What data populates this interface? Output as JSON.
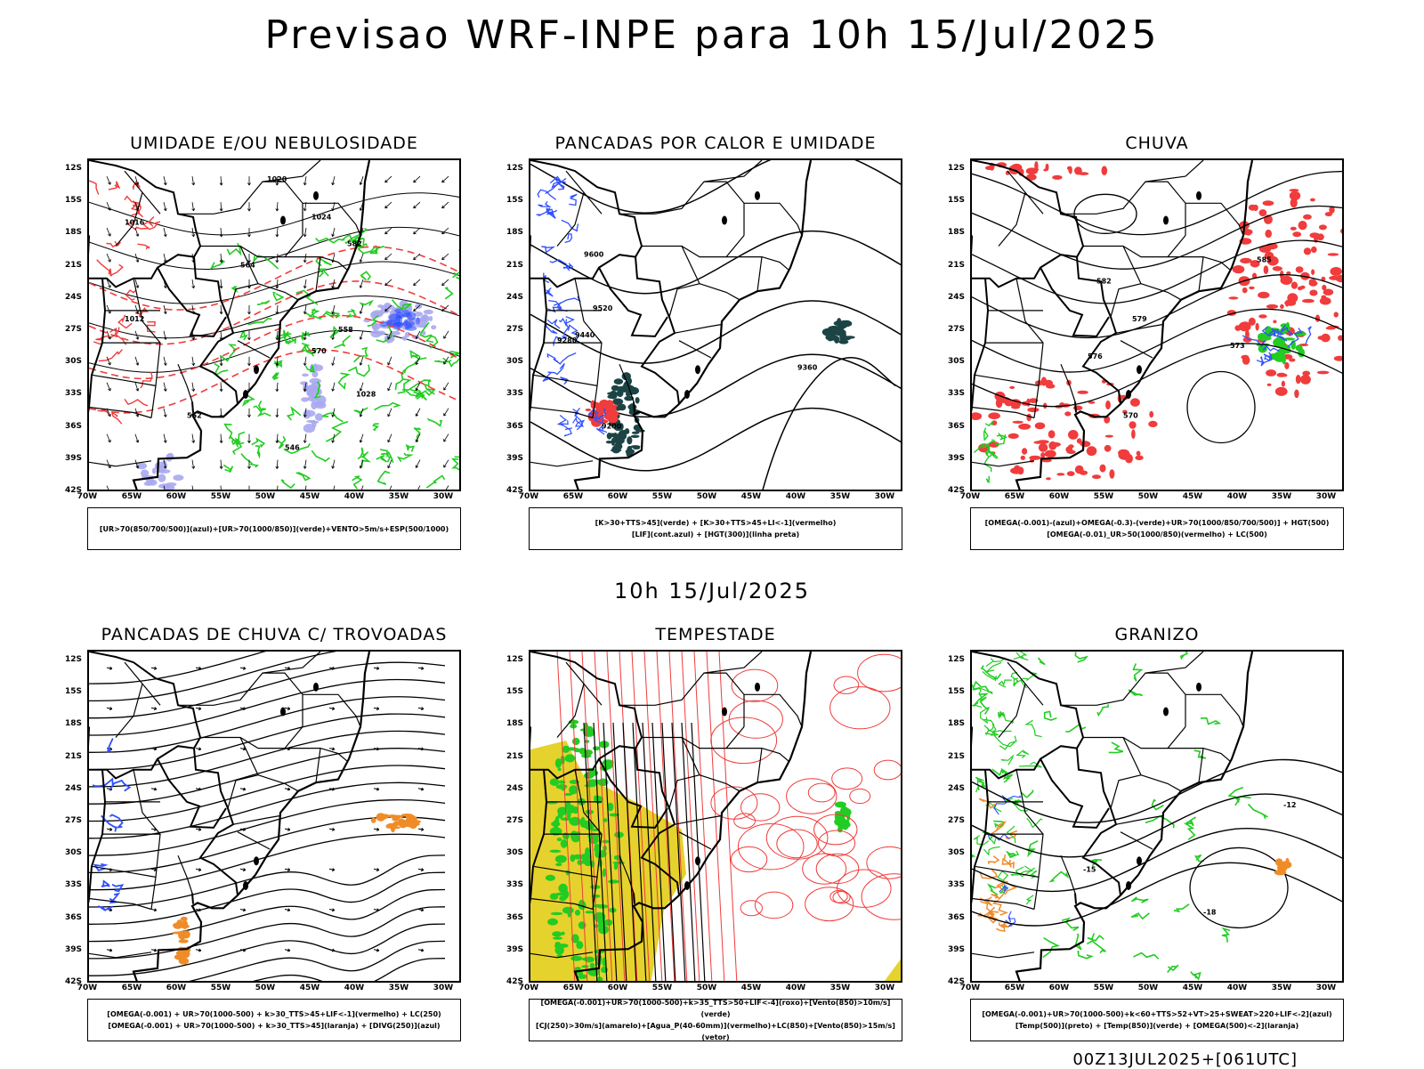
{
  "title": "Previsao WRF-INPE  para 10h 15/Jul/2025",
  "mid_title": "10h 15/Jul/2025",
  "footer": "00Z13JUL2025+[061UTC]",
  "lat_labels": [
    "12S",
    "15S",
    "18S",
    "21S",
    "24S",
    "27S",
    "30S",
    "33S",
    "36S",
    "39S",
    "42S"
  ],
  "lon_labels": [
    "70W",
    "65W",
    "60W",
    "55W",
    "50W",
    "45W",
    "40W",
    "35W",
    "30W"
  ],
  "colors": {
    "blue": "#3050ff",
    "green": "#22cc22",
    "red": "#f03c3c",
    "lavender": "#a8a8f0",
    "dark_teal": "#1c4444",
    "orange": "#f08c28",
    "yellow": "#e6d22d",
    "black": "#000000"
  },
  "chart_data": [
    {
      "type": "map",
      "title": "UMIDADE E/OU NEBULOSIDADE",
      "legend_lines": [
        "[UR>70(850/700/500)](azul)+[UR>70(1000/850)](verde)+VENTO>5m/s+ESP(500/1000)"
      ],
      "contour_labels": [
        "1020",
        "1016",
        "1024",
        "1012",
        "1028",
        "570",
        "564",
        "558",
        "552",
        "546",
        "582"
      ]
    },
    {
      "type": "map",
      "title": "PANCADAS POR CALOR E UMIDADE",
      "legend_lines": [
        "[K>30+TTS>45](verde) + [K>30+TTS>45+LI<-1](vermelho)",
        "[LIF](cont.azul) + [HGT(300)](linha preta)"
      ],
      "contour_labels": [
        "9600",
        "9520",
        "9440",
        "9360",
        "9280",
        "9200"
      ]
    },
    {
      "type": "map",
      "title": "CHUVA",
      "legend_lines": [
        "[OMEGA(-0.001)-(azul)+OMEGA(-0.3)-(verde)+UR>70(1000/850/700/500)] + HGT(500)",
        "[OMEGA(-0.01)_UR>50(1000/850)(vermelho) + LC(500)"
      ],
      "contour_labels": [
        "585",
        "582",
        "579",
        "576",
        "573",
        "570"
      ]
    },
    {
      "type": "map",
      "title": "PANCADAS DE CHUVA C/ TROVOADAS",
      "legend_lines": [
        "[OMEGA(-0.001) + UR>70(1000-500) + k>30_TTS>45+LIF<-1](vermelho) + LC(250)",
        "[OMEGA(-0.001) + UR>70(1000-500) + k>30_TTS>45](laranja) + [DIVG(250)](azul)"
      ],
      "contour_labels": []
    },
    {
      "type": "map",
      "title": "TEMPESTADE",
      "legend_lines": [
        "[OMEGA(-0.001)+UR>70(1000-500)+k>35_TTS>50+LIF<-4](roxo)+[Vento(850)>10m/s](verde)",
        "[CJ(250)>30m/s](amarelo)+[Agua_P(40-60mm)](vermelho)+LC(850)+[Vento(850)>15m/s](vetor)"
      ],
      "contour_labels": []
    },
    {
      "type": "map",
      "title": "GRANIZO",
      "legend_lines": [
        "[OMEGA(-0.001)+UR>70(1000-500)+k<60+TTS>52+VT>25+SWEAT>220+LIF<-2](azul)",
        "[Temp(500)](preto) + [Temp(850)](verde) + [OMEGA(500)<-2](laranja)"
      ],
      "contour_labels": [
        "-12",
        "-15",
        "-18"
      ]
    }
  ]
}
